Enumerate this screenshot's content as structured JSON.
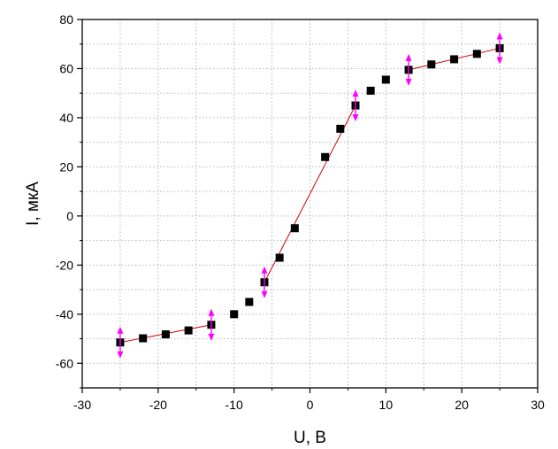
{
  "chart_data": {
    "type": "scatter",
    "title": "",
    "xlabel": "U, В",
    "ylabel": "I, мкА",
    "xlim": [
      -30,
      30
    ],
    "ylim": [
      -70,
      80
    ],
    "xticks": [
      -30,
      -20,
      -10,
      0,
      10,
      20,
      30
    ],
    "yticks": [
      -60,
      -40,
      -20,
      0,
      20,
      40,
      60,
      80
    ],
    "grid": true,
    "legend": "none",
    "colors": {
      "points": "#000000",
      "fit_lines": "#cc0000",
      "markers": "#ff00ff"
    },
    "series": [
      {
        "values": [
          {
            "x": -25,
            "y": -51.5
          },
          {
            "x": -22,
            "y": -49.8
          },
          {
            "x": -19,
            "y": -48.2
          },
          {
            "x": -16,
            "y": -46.6
          },
          {
            "x": -13,
            "y": -44.3
          },
          {
            "x": -10,
            "y": -40
          },
          {
            "x": -8,
            "y": -35
          },
          {
            "x": -6,
            "y": -27
          },
          {
            "x": -4,
            "y": -17
          },
          {
            "x": -2,
            "y": -5
          },
          {
            "x": 2,
            "y": 24
          },
          {
            "x": 4,
            "y": 35.5
          },
          {
            "x": 6,
            "y": 45
          },
          {
            "x": 8,
            "y": 51
          },
          {
            "x": 10,
            "y": 55.5
          },
          {
            "x": 13,
            "y": 59.5
          },
          {
            "x": 16,
            "y": 61.7
          },
          {
            "x": 19,
            "y": 63.8
          },
          {
            "x": 22,
            "y": 66
          },
          {
            "x": 25,
            "y": 68.3
          }
        ]
      }
    ],
    "fit_lines": [
      {
        "from": [
          -25,
          -51.5
        ],
        "to": [
          -13,
          -44.3
        ]
      },
      {
        "from": [
          -6,
          -27
        ],
        "to": [
          6,
          45
        ]
      },
      {
        "from": [
          13,
          59.5
        ],
        "to": [
          25,
          68.3
        ]
      }
    ],
    "range_markers": [
      {
        "x": -25,
        "y": -51.5
      },
      {
        "x": -13,
        "y": -44.3
      },
      {
        "x": -6,
        "y": -27
      },
      {
        "x": 6,
        "y": 45
      },
      {
        "x": 13,
        "y": 59.5
      },
      {
        "x": 25,
        "y": 68.3
      }
    ]
  }
}
